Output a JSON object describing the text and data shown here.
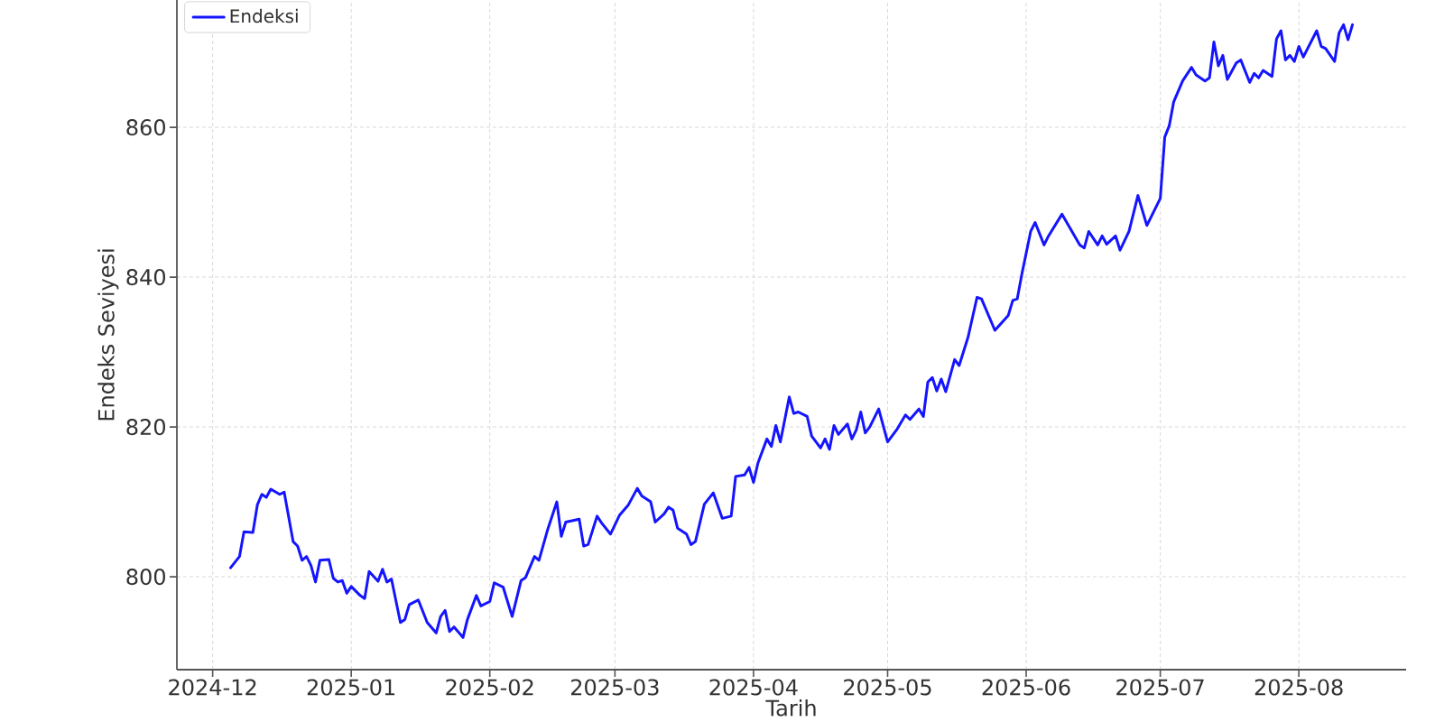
{
  "chart_data": {
    "type": "line",
    "xlabel": "Tarih",
    "ylabel": "Endeks Seviyesi",
    "x": [
      "2024-12-05",
      "2024-12-07",
      "2024-12-08",
      "2024-12-10",
      "2024-12-11",
      "2024-12-12",
      "2024-12-13",
      "2024-12-14",
      "2024-12-16",
      "2024-12-17",
      "2024-12-19",
      "2024-12-20",
      "2024-12-21",
      "2024-12-22",
      "2024-12-23",
      "2024-12-24",
      "2024-12-25",
      "2024-12-27",
      "2024-12-28",
      "2024-12-29",
      "2024-12-30",
      "2024-12-31",
      "2025-01-01",
      "2025-01-03",
      "2025-01-04",
      "2025-01-05",
      "2025-01-07",
      "2025-01-08",
      "2025-01-09",
      "2025-01-10",
      "2025-01-12",
      "2025-01-13",
      "2025-01-14",
      "2025-01-16",
      "2025-01-18",
      "2025-01-20",
      "2025-01-21",
      "2025-01-22",
      "2025-01-23",
      "2025-01-24",
      "2025-01-26",
      "2025-01-27",
      "2025-01-29",
      "2025-01-30",
      "2025-02-01",
      "2025-02-02",
      "2025-02-04",
      "2025-02-06",
      "2025-02-08",
      "2025-02-09",
      "2025-02-11",
      "2025-02-12",
      "2025-02-14",
      "2025-02-16",
      "2025-02-17",
      "2025-02-18",
      "2025-02-21",
      "2025-02-22",
      "2025-02-23",
      "2025-02-25",
      "2025-02-26",
      "2025-02-28",
      "2025-03-02",
      "2025-03-04",
      "2025-03-06",
      "2025-03-07",
      "2025-03-09",
      "2025-03-10",
      "2025-03-12",
      "2025-03-13",
      "2025-03-14",
      "2025-03-15",
      "2025-03-17",
      "2025-03-18",
      "2025-03-19",
      "2025-03-21",
      "2025-03-23",
      "2025-03-25",
      "2025-03-27",
      "2025-03-28",
      "2025-03-30",
      "2025-03-31",
      "2025-04-01",
      "2025-04-02",
      "2025-04-04",
      "2025-04-05",
      "2025-04-06",
      "2025-04-07",
      "2025-04-09",
      "2025-04-10",
      "2025-04-11",
      "2025-04-13",
      "2025-04-14",
      "2025-04-16",
      "2025-04-17",
      "2025-04-18",
      "2025-04-19",
      "2025-04-20",
      "2025-04-22",
      "2025-04-23",
      "2025-04-24",
      "2025-04-25",
      "2025-04-26",
      "2025-04-27",
      "2025-04-29",
      "2025-05-01",
      "2025-05-03",
      "2025-05-05",
      "2025-05-06",
      "2025-05-08",
      "2025-05-09",
      "2025-05-10",
      "2025-05-11",
      "2025-05-12",
      "2025-05-13",
      "2025-05-14",
      "2025-05-16",
      "2025-05-17",
      "2025-05-19",
      "2025-05-21",
      "2025-05-22",
      "2025-05-25",
      "2025-05-28",
      "2025-05-29",
      "2025-05-30",
      "2025-05-31",
      "2025-06-02",
      "2025-06-03",
      "2025-06-05",
      "2025-06-06",
      "2025-06-09",
      "2025-06-13",
      "2025-06-14",
      "2025-06-15",
      "2025-06-17",
      "2025-06-18",
      "2025-06-19",
      "2025-06-21",
      "2025-06-22",
      "2025-06-24",
      "2025-06-26",
      "2025-06-28",
      "2025-07-01",
      "2025-07-02",
      "2025-07-03",
      "2025-07-04",
      "2025-07-06",
      "2025-07-08",
      "2025-07-09",
      "2025-07-11",
      "2025-07-12",
      "2025-07-13",
      "2025-07-14",
      "2025-07-15",
      "2025-07-16",
      "2025-07-18",
      "2025-07-19",
      "2025-07-21",
      "2025-07-22",
      "2025-07-23",
      "2025-07-24",
      "2025-07-26",
      "2025-07-27",
      "2025-07-28",
      "2025-07-29",
      "2025-07-30",
      "2025-07-31",
      "2025-08-01",
      "2025-08-02",
      "2025-08-05",
      "2025-08-06",
      "2025-08-07",
      "2025-08-09",
      "2025-08-10",
      "2025-08-11",
      "2025-08-12",
      "2025-08-13"
    ],
    "series": [
      {
        "name": "Endeksi",
        "color": "#1414ff",
        "values": [
          801.2,
          802.7,
          806.0,
          805.9,
          809.6,
          811.0,
          810.6,
          811.7,
          811.0,
          811.3,
          804.7,
          804.1,
          802.2,
          802.7,
          801.5,
          799.3,
          802.2,
          802.3,
          799.8,
          799.3,
          799.5,
          797.8,
          798.7,
          797.5,
          797.1,
          800.7,
          799.4,
          801.0,
          799.3,
          799.7,
          793.9,
          794.3,
          796.3,
          796.9,
          793.9,
          792.5,
          794.7,
          795.5,
          792.7,
          793.3,
          791.9,
          794.3,
          797.5,
          796.1,
          796.7,
          799.2,
          798.6,
          794.7,
          799.5,
          799.9,
          802.7,
          802.2,
          806.4,
          810.0,
          805.4,
          807.3,
          807.7,
          804.1,
          804.3,
          808.1,
          807.2,
          805.7,
          808.2,
          809.6,
          811.8,
          810.8,
          810.0,
          807.3,
          808.4,
          809.3,
          808.9,
          806.5,
          805.7,
          804.3,
          804.7,
          809.7,
          811.2,
          807.8,
          808.1,
          813.4,
          813.6,
          814.6,
          812.6,
          815.2,
          818.4,
          817.4,
          820.2,
          818.0,
          824.0,
          821.8,
          822.0,
          821.4,
          818.8,
          817.2,
          818.4,
          817.0,
          820.2,
          819.0,
          820.4,
          818.4,
          819.6,
          822.0,
          819.2,
          820.0,
          822.4,
          818.0,
          819.6,
          821.6,
          821.0,
          822.4,
          821.4,
          826.0,
          826.6,
          824.8,
          826.4,
          824.7,
          829.0,
          828.2,
          832.0,
          837.3,
          837.1,
          832.9,
          834.9,
          836.9,
          837.1,
          840.3,
          846.1,
          847.3,
          844.3,
          845.5,
          848.4,
          844.3,
          843.9,
          846.1,
          844.3,
          845.5,
          844.4,
          845.5,
          843.6,
          846.1,
          850.9,
          846.9,
          850.5,
          858.7,
          860.2,
          863.4,
          866.2,
          868.0,
          867.0,
          866.2,
          866.6,
          871.4,
          868.2,
          869.6,
          866.4,
          868.6,
          869.0,
          866.0,
          867.2,
          866.6,
          867.6,
          866.8,
          871.8,
          872.9,
          869.0,
          869.6,
          868.8,
          870.8,
          869.4,
          872.9,
          870.8,
          870.5,
          868.8,
          872.6,
          873.7,
          871.7,
          873.7
        ]
      }
    ],
    "xlim": [
      "2024-11-23",
      "2025-08-25"
    ],
    "xticks": [
      "2024-12",
      "2025-01",
      "2025-02",
      "2025-03",
      "2025-04",
      "2025-05",
      "2025-06",
      "2025-07",
      "2025-08"
    ],
    "ylim": [
      787.6,
      877
    ],
    "yticks": [
      800,
      820,
      840,
      860
    ],
    "grid": true,
    "legend": "top left"
  }
}
